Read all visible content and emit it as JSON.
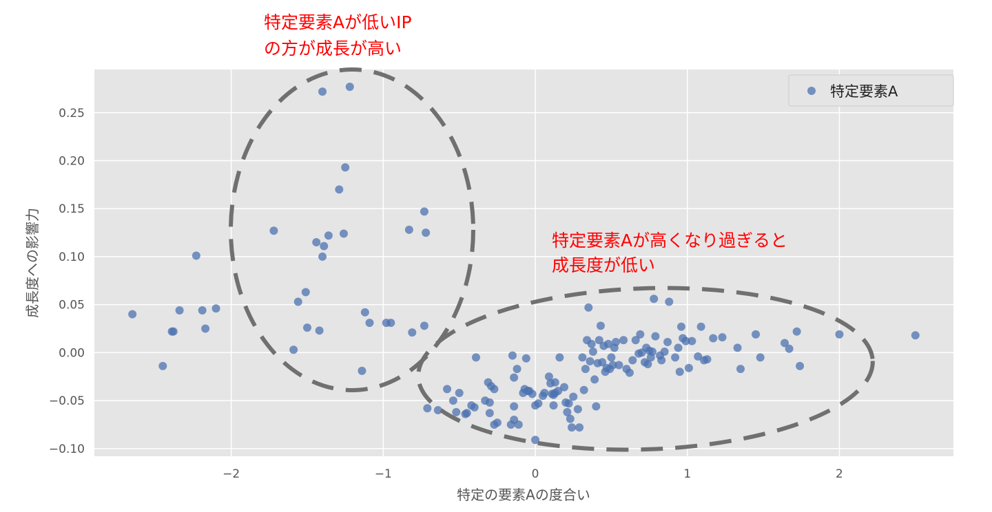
{
  "chart_data": {
    "type": "scatter",
    "xlabel": "特定の要素Aの度合い",
    "ylabel": "成長度への影響力",
    "xlim": [
      -2.9,
      2.75
    ],
    "ylim": [
      -0.108,
      0.295
    ],
    "xticks": [
      -2,
      -1,
      0,
      1,
      2
    ],
    "yticks": [
      -0.1,
      -0.05,
      0.0,
      0.05,
      0.1,
      0.15,
      0.2,
      0.25
    ],
    "xtick_labels": [
      "−2",
      "−1",
      "0",
      "1",
      "2"
    ],
    "ytick_labels": [
      "−0.10",
      "−0.05",
      "0.00",
      "0.05",
      "0.10",
      "0.15",
      "0.20",
      "0.25"
    ],
    "grid": true,
    "legend_position": "top-right",
    "series": [
      {
        "name": "特定要素A",
        "color": "#4c72b0",
        "points": [
          [
            -2.65,
            0.04
          ],
          [
            -2.45,
            -0.014
          ],
          [
            -2.39,
            0.022
          ],
          [
            -2.38,
            0.022
          ],
          [
            -2.34,
            0.044
          ],
          [
            -2.23,
            0.101
          ],
          [
            -2.19,
            0.044
          ],
          [
            -2.17,
            0.025
          ],
          [
            -2.1,
            0.046
          ],
          [
            -1.72,
            0.127
          ],
          [
            -1.59,
            0.003
          ],
          [
            -1.56,
            0.053
          ],
          [
            -1.51,
            0.063
          ],
          [
            -1.5,
            0.026
          ],
          [
            -1.44,
            0.115
          ],
          [
            -1.42,
            0.023
          ],
          [
            -1.4,
            0.1
          ],
          [
            -1.39,
            0.111
          ],
          [
            -1.4,
            0.272
          ],
          [
            -1.36,
            0.122
          ],
          [
            -1.29,
            0.17
          ],
          [
            -1.26,
            0.124
          ],
          [
            -1.25,
            0.193
          ],
          [
            -1.22,
            0.277
          ],
          [
            -1.14,
            -0.019
          ],
          [
            -1.12,
            0.042
          ],
          [
            -1.09,
            0.031
          ],
          [
            -0.98,
            0.031
          ],
          [
            -0.95,
            0.031
          ],
          [
            -0.83,
            0.128
          ],
          [
            -0.81,
            0.021
          ],
          [
            -0.73,
            0.147
          ],
          [
            -0.72,
            0.125
          ],
          [
            -0.73,
            0.028
          ],
          [
            -0.71,
            -0.058
          ],
          [
            -0.64,
            -0.06
          ],
          [
            -0.58,
            -0.038
          ],
          [
            -0.54,
            -0.05
          ],
          [
            -0.52,
            -0.062
          ],
          [
            -0.5,
            -0.042
          ],
          [
            -0.46,
            -0.064
          ],
          [
            -0.45,
            -0.063
          ],
          [
            -0.42,
            -0.055
          ],
          [
            -0.4,
            -0.057
          ],
          [
            -0.39,
            -0.005
          ],
          [
            -0.33,
            -0.05
          ],
          [
            -0.31,
            -0.031
          ],
          [
            -0.3,
            -0.052
          ],
          [
            -0.3,
            -0.063
          ],
          [
            -0.29,
            -0.035
          ],
          [
            -0.27,
            -0.038
          ],
          [
            -0.27,
            -0.075
          ],
          [
            -0.25,
            -0.073
          ],
          [
            -0.16,
            -0.075
          ],
          [
            -0.15,
            -0.003
          ],
          [
            -0.14,
            -0.026
          ],
          [
            -0.14,
            -0.056
          ],
          [
            -0.14,
            -0.07
          ],
          [
            -0.12,
            -0.017
          ],
          [
            -0.11,
            -0.075
          ],
          [
            -0.08,
            -0.042
          ],
          [
            -0.07,
            -0.038
          ],
          [
            -0.06,
            -0.006
          ],
          [
            -0.05,
            -0.04
          ],
          [
            -0.04,
            -0.04
          ],
          [
            -0.02,
            -0.043
          ],
          [
            0.0,
            -0.055
          ],
          [
            0.0,
            -0.091
          ],
          [
            0.02,
            -0.053
          ],
          [
            0.05,
            -0.045
          ],
          [
            0.06,
            -0.042
          ],
          [
            0.09,
            -0.025
          ],
          [
            0.1,
            -0.032
          ],
          [
            0.11,
            -0.043
          ],
          [
            0.12,
            -0.044
          ],
          [
            0.12,
            -0.055
          ],
          [
            0.13,
            -0.042
          ],
          [
            0.13,
            -0.031
          ],
          [
            0.15,
            -0.04
          ],
          [
            0.16,
            -0.005
          ],
          [
            0.19,
            -0.036
          ],
          [
            0.2,
            -0.052
          ],
          [
            0.21,
            -0.062
          ],
          [
            0.22,
            -0.053
          ],
          [
            0.23,
            -0.069
          ],
          [
            0.24,
            -0.078
          ],
          [
            0.25,
            -0.046
          ],
          [
            0.28,
            -0.059
          ],
          [
            0.29,
            -0.078
          ],
          [
            0.31,
            -0.005
          ],
          [
            0.32,
            -0.039
          ],
          [
            0.33,
            -0.017
          ],
          [
            0.34,
            0.013
          ],
          [
            0.35,
            0.047
          ],
          [
            0.36,
            -0.009
          ],
          [
            0.37,
            0.009
          ],
          [
            0.38,
            0.001
          ],
          [
            0.39,
            -0.028
          ],
          [
            0.4,
            -0.056
          ],
          [
            0.41,
            -0.011
          ],
          [
            0.42,
            0.013
          ],
          [
            0.43,
            0.028
          ],
          [
            0.44,
            -0.01
          ],
          [
            0.45,
            0.007
          ],
          [
            0.46,
            -0.02
          ],
          [
            0.47,
            -0.016
          ],
          [
            0.48,
            0.009
          ],
          [
            0.49,
            -0.017
          ],
          [
            0.5,
            -0.005
          ],
          [
            0.51,
            -0.013
          ],
          [
            0.52,
            0.005
          ],
          [
            0.53,
            0.011
          ],
          [
            0.55,
            -0.013
          ],
          [
            0.58,
            0.013
          ],
          [
            0.6,
            -0.017
          ],
          [
            0.62,
            -0.021
          ],
          [
            0.64,
            -0.008
          ],
          [
            0.66,
            0.013
          ],
          [
            0.68,
            -0.001
          ],
          [
            0.69,
            0.019
          ],
          [
            0.7,
            0.0
          ],
          [
            0.72,
            -0.01
          ],
          [
            0.73,
            0.005
          ],
          [
            0.74,
            -0.012
          ],
          [
            0.75,
            0.002
          ],
          [
            0.76,
            -0.005
          ],
          [
            0.77,
            0.001
          ],
          [
            0.78,
            0.056
          ],
          [
            0.79,
            0.017
          ],
          [
            0.82,
            -0.003
          ],
          [
            0.83,
            -0.008
          ],
          [
            0.85,
            0.001
          ],
          [
            0.87,
            0.011
          ],
          [
            0.88,
            0.053
          ],
          [
            0.92,
            -0.005
          ],
          [
            0.94,
            0.005
          ],
          [
            0.95,
            -0.02
          ],
          [
            0.96,
            0.027
          ],
          [
            0.97,
            0.015
          ],
          [
            0.99,
            0.012
          ],
          [
            1.01,
            -0.016
          ],
          [
            1.03,
            0.012
          ],
          [
            1.07,
            -0.004
          ],
          [
            1.09,
            0.027
          ],
          [
            1.11,
            -0.008
          ],
          [
            1.13,
            -0.007
          ],
          [
            1.17,
            0.015
          ],
          [
            1.23,
            0.016
          ],
          [
            1.33,
            0.005
          ],
          [
            1.35,
            -0.017
          ],
          [
            1.45,
            0.019
          ],
          [
            1.48,
            -0.005
          ],
          [
            1.64,
            0.01
          ],
          [
            1.67,
            0.004
          ],
          [
            1.72,
            0.022
          ],
          [
            1.74,
            -0.014
          ],
          [
            2.0,
            0.019
          ],
          [
            2.5,
            0.018
          ]
        ]
      }
    ],
    "annotations": [
      {
        "lines": [
          "特定要素Aが低いIP",
          "の方が成長が高い"
        ],
        "color": "#ff0000"
      },
      {
        "lines": [
          "特定要素Aが高くなり過ぎると",
          "成長度が低い"
        ],
        "color": "#ff0000"
      }
    ]
  }
}
